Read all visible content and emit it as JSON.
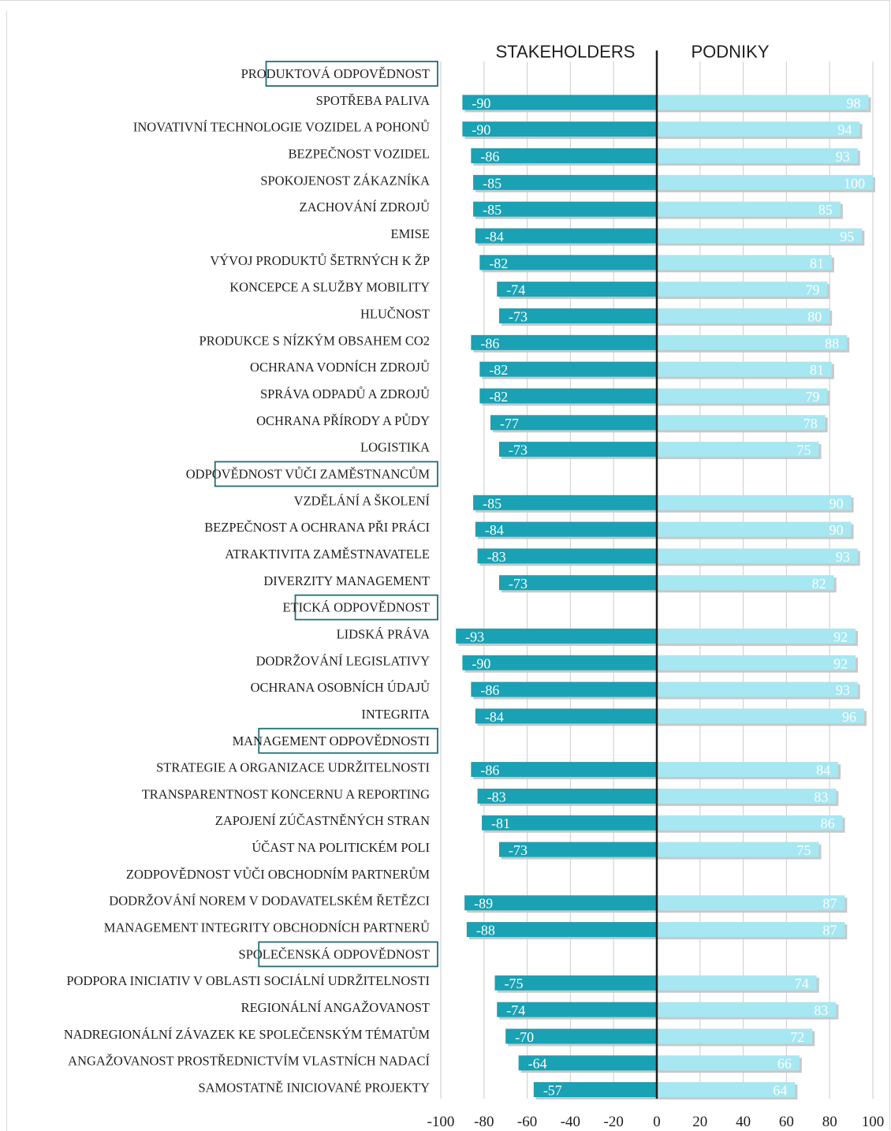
{
  "chart_data": {
    "type": "bar",
    "orientation": "horizontal",
    "headers": {
      "left": "STAKEHOLDERS",
      "right": "PODNIKY"
    },
    "xlim": [
      -100,
      100
    ],
    "xticks": [
      "-100",
      "-80",
      "-60",
      "-40",
      "-20",
      "0",
      "20",
      "40",
      "60",
      "80",
      "100"
    ],
    "colors": {
      "stakeholders": "#1aa1b3",
      "podniky": "#a7e7f1",
      "section_border": "#1f6f75"
    },
    "rows": [
      {
        "label": "PRODUKTOVÁ ODPOVĚDNOST",
        "section": true
      },
      {
        "label": "SPOTŘEBA PALIVA",
        "stakeholders": -90,
        "podniky": 98
      },
      {
        "label": "INOVATIVNÍ TECHNOLOGIE VOZIDEL A POHONŮ",
        "stakeholders": -90,
        "podniky": 94
      },
      {
        "label": "BEZPEČNOST VOZIDEL",
        "stakeholders": -86,
        "podniky": 93
      },
      {
        "label": "SPOKOJENOST ZÁKAZNÍKA",
        "stakeholders": -85,
        "podniky": 100
      },
      {
        "label": "ZACHOVÁNÍ ZDROJŮ",
        "stakeholders": -85,
        "podniky": 85
      },
      {
        "label": "EMISE",
        "stakeholders": -84,
        "podniky": 95
      },
      {
        "label": "VÝVOJ PRODUKTŮ ŠETRNÝCH K ŽP",
        "stakeholders": -82,
        "podniky": 81
      },
      {
        "label": "KONCEPCE A SLUŽBY MOBILITY",
        "stakeholders": -74,
        "podniky": 79
      },
      {
        "label": "HLUČNOST",
        "stakeholders": -73,
        "podniky": 80
      },
      {
        "label": "PRODUKCE S NÍZKÝM OBSAHEM CO2",
        "stakeholders": -86,
        "podniky": 88
      },
      {
        "label": "OCHRANA VODNÍCH ZDROJŮ",
        "stakeholders": -82,
        "podniky": 81
      },
      {
        "label": "SPRÁVA ODPADŮ A ZDROJŮ",
        "stakeholders": -82,
        "podniky": 79
      },
      {
        "label": "OCHRANA PŘÍRODY A PŮDY",
        "stakeholders": -77,
        "podniky": 78
      },
      {
        "label": "LOGISTIKA",
        "stakeholders": -73,
        "podniky": 75
      },
      {
        "label": "ODPOVĚDNOST VŮČI ZAMĚSTNANCŮM",
        "section": true
      },
      {
        "label": "VZDĚLÁNÍ A ŠKOLENÍ",
        "stakeholders": -85,
        "podniky": 90
      },
      {
        "label": "BEZPEČNOST A OCHRANA PŘI PRÁCI",
        "stakeholders": -84,
        "podniky": 90
      },
      {
        "label": "ATRAKTIVITA ZAMĚSTNAVATELE",
        "stakeholders": -83,
        "podniky": 93
      },
      {
        "label": "DIVERZITY MANAGEMENT",
        "stakeholders": -73,
        "podniky": 82
      },
      {
        "label": "ETICKÁ ODPOVĚDNOST",
        "section": true
      },
      {
        "label": "LIDSKÁ PRÁVA",
        "stakeholders": -93,
        "podniky": 92
      },
      {
        "label": "DODRŽOVÁNÍ LEGISLATIVY",
        "stakeholders": -90,
        "podniky": 92
      },
      {
        "label": "OCHRANA OSOBNÍCH ÚDAJŮ",
        "stakeholders": -86,
        "podniky": 93
      },
      {
        "label": "INTEGRITA",
        "stakeholders": -84,
        "podniky": 96
      },
      {
        "label": "MANAGEMENT ODPOVĚDNOSTI",
        "section": true
      },
      {
        "label": "STRATEGIE A ORGANIZACE UDRŽITELNOSTI",
        "stakeholders": -86,
        "podniky": 84
      },
      {
        "label": "TRANSPARENTNOST KONCERNU A REPORTING",
        "stakeholders": -83,
        "podniky": 83
      },
      {
        "label": "ZAPOJENÍ ZÚČASTNĚNÝCH STRAN",
        "stakeholders": -81,
        "podniky": 86
      },
      {
        "label": "ÚČAST NA POLITICKÉM POLI",
        "stakeholders": -73,
        "podniky": 75
      },
      {
        "label": "ZODPOVĚDNOST VŮČI OBCHODNÍM PARTNERŮM",
        "section": false
      },
      {
        "label": "DODRŽOVÁNÍ NOREM V DODAVATELSKÉM ŘETĚZCI",
        "stakeholders": -89,
        "podniky": 87
      },
      {
        "label": "MANAGEMENT INTEGRITY OBCHODNÍCH PARTNERŮ",
        "stakeholders": -88,
        "podniky": 87
      },
      {
        "label": "SPOLEČENSKÁ ODPOVĚDNOST",
        "section": true
      },
      {
        "label": "PODPORA INICIATIV V OBLASTI SOCIÁLNÍ UDRŽITELNOSTI",
        "stakeholders": -75,
        "podniky": 74
      },
      {
        "label": "REGIONÁLNÍ ANGAŽOVANOST",
        "stakeholders": -74,
        "podniky": 83
      },
      {
        "label": "NADREGIONÁLNÍ ZÁVAZEK KE SPOLEČENSKÝM TÉMATŮM",
        "stakeholders": -70,
        "podniky": 72
      },
      {
        "label": "ANGAŽOVANOST PROSTŘEDNICTVÍM VLASTNÍCH NADACÍ",
        "stakeholders": -64,
        "podniky": 66
      },
      {
        "label": "SAMOSTATNĚ INICIOVANÉ PROJEKTY",
        "stakeholders": -57,
        "podniky": 64
      }
    ]
  }
}
